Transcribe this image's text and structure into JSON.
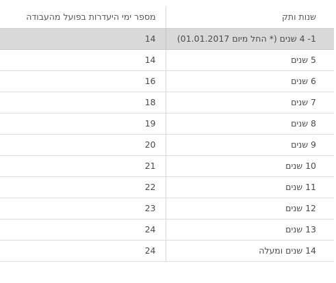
{
  "table": {
    "headers": {
      "days": "מספר ימי היעדרות בפועל מהעבודה",
      "tenure": "שנות ותק"
    },
    "rows": [
      {
        "tenure": "1- 4 שנים (* החל מיום 01.01.2017)",
        "days": "14",
        "highlighted": true
      },
      {
        "tenure": "5 שנים",
        "days": "14",
        "highlighted": false
      },
      {
        "tenure": "6 שנים",
        "days": "16",
        "highlighted": false
      },
      {
        "tenure": "7 שנים",
        "days": "18",
        "highlighted": false
      },
      {
        "tenure": "8 שנים",
        "days": "19",
        "highlighted": false
      },
      {
        "tenure": "9 שנים",
        "days": "20",
        "highlighted": false
      },
      {
        "tenure": "10 שנים",
        "days": "21",
        "highlighted": false
      },
      {
        "tenure": "11 שנים",
        "days": "22",
        "highlighted": false
      },
      {
        "tenure": "12 שנים",
        "days": "23",
        "highlighted": false
      },
      {
        "tenure": "13 שנים",
        "days": "24",
        "highlighted": false
      },
      {
        "tenure": "14 שנים ומעלה",
        "days": "24",
        "highlighted": false
      }
    ]
  },
  "colors": {
    "highlight_row": "#d9d9d9",
    "border": "#dddddd",
    "text": "#4a4a4a"
  }
}
